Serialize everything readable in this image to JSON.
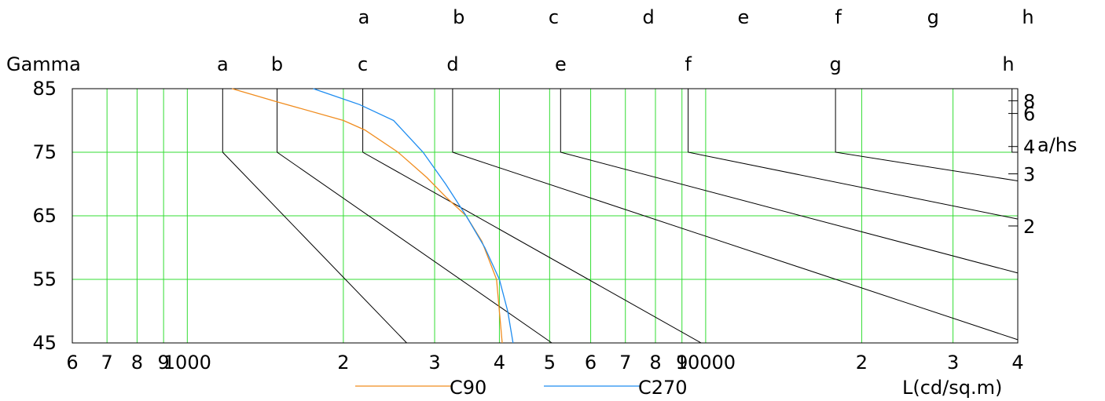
{
  "chart_data": {
    "type": "line",
    "title": "",
    "ylabel": "Gamma",
    "xlabel": "L(cd/sq.m)",
    "ylim": [
      45,
      85
    ],
    "yticks": [
      85,
      75,
      65,
      55,
      45
    ],
    "x_scale": "log",
    "xlim": [
      600,
      40000
    ],
    "x_tick_values": [
      600,
      700,
      800,
      900,
      1000,
      2000,
      3000,
      4000,
      5000,
      6000,
      7000,
      8000,
      9000,
      10000,
      20000,
      30000,
      40000
    ],
    "x_tick_labels": [
      "6",
      "7",
      "8",
      "9",
      "1000",
      "2",
      "3",
      "4",
      "5",
      "6",
      "7",
      "8",
      "9",
      "10000",
      "2",
      "3",
      "4"
    ],
    "grid": true,
    "grid_color": "#33dd33",
    "right_axis": {
      "label": "a/hs",
      "ticks": [
        {
          "label": "8",
          "gamma": 83.1
        },
        {
          "label": "6",
          "gamma": 81.1
        },
        {
          "label": "4",
          "gamma": 75.9
        },
        {
          "label": "3",
          "gamma": 71.6
        },
        {
          "label": "2",
          "gamma": 63.4
        }
      ]
    },
    "top_labels_outer": [
      "a",
      "b",
      "c",
      "d",
      "e",
      "f",
      "g",
      "h"
    ],
    "top_labels_inner": [
      "a",
      "b",
      "c",
      "d",
      "e",
      "f",
      "g",
      "h"
    ],
    "reference_lines": [
      {
        "name": "a",
        "points": [
          [
            1170,
            85
          ],
          [
            1170,
            75
          ],
          [
            2650,
            45
          ]
        ]
      },
      {
        "name": "b",
        "points": [
          [
            1490,
            85
          ],
          [
            1490,
            75
          ],
          [
            5050,
            45
          ]
        ]
      },
      {
        "name": "c",
        "points": [
          [
            2180,
            85
          ],
          [
            2180,
            75
          ],
          [
            9800,
            45
          ]
        ]
      },
      {
        "name": "d",
        "points": [
          [
            3250,
            85
          ],
          [
            3250,
            75
          ],
          [
            40000,
            45.5
          ]
        ]
      },
      {
        "name": "e",
        "points": [
          [
            5250,
            85
          ],
          [
            5250,
            75
          ],
          [
            40000,
            56
          ]
        ]
      },
      {
        "name": "f",
        "points": [
          [
            9250,
            85
          ],
          [
            9250,
            75
          ],
          [
            40000,
            64.5
          ]
        ]
      },
      {
        "name": "g",
        "points": [
          [
            17800,
            85
          ],
          [
            17800,
            75
          ],
          [
            40000,
            70.5
          ]
        ]
      },
      {
        "name": "h",
        "points": [
          [
            39000,
            85
          ],
          [
            39000,
            75
          ],
          [
            40000,
            75
          ]
        ]
      }
    ],
    "series": [
      {
        "name": "C90",
        "color": "#f08c1e",
        "points": [
          [
            1220,
            85
          ],
          [
            1480,
            83
          ],
          [
            2000,
            80
          ],
          [
            2200,
            78.5
          ],
          [
            2550,
            75
          ],
          [
            2900,
            71
          ],
          [
            3150,
            68
          ],
          [
            3450,
            65
          ],
          [
            3700,
            61
          ],
          [
            3950,
            55
          ],
          [
            4000,
            50
          ],
          [
            4050,
            45
          ]
        ]
      },
      {
        "name": "C270",
        "color": "#1e8cf0",
        "points": [
          [
            1750,
            85
          ],
          [
            2150,
            82.5
          ],
          [
            2500,
            80
          ],
          [
            2850,
            75
          ],
          [
            3150,
            70
          ],
          [
            3450,
            65
          ],
          [
            3750,
            60
          ],
          [
            4000,
            55
          ],
          [
            4150,
            50
          ],
          [
            4250,
            45
          ]
        ]
      }
    ]
  }
}
